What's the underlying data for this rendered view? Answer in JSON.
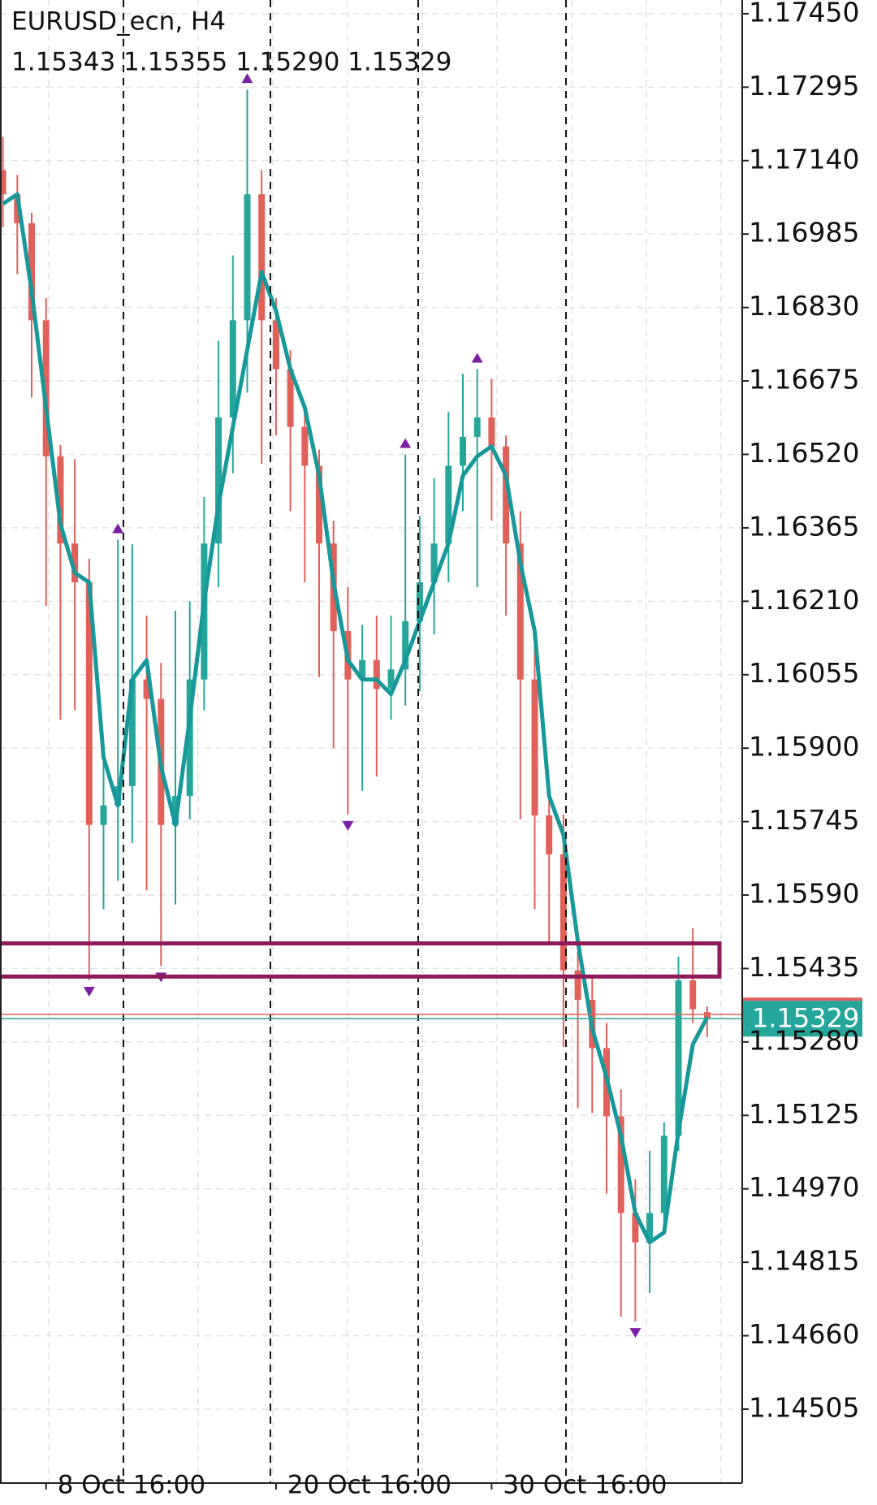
{
  "chart_data": {
    "type": "candlestick",
    "title": "EURUSD_ecn, H4",
    "subtitle": "1.15343 1.15355 1.15290 1.15329",
    "categories": [
      null,
      null,
      null,
      "8 Oct 16:00",
      null,
      null,
      null,
      null,
      null,
      null,
      null,
      null,
      null,
      null,
      null,
      null,
      null,
      null,
      null,
      "20 Oct 16:00",
      null,
      null,
      null,
      null,
      null,
      null,
      null,
      null,
      null,
      null,
      null,
      null,
      null,
      null,
      "30 Oct 16:00",
      null,
      null,
      null,
      null,
      null,
      null,
      null,
      null,
      null,
      null,
      null,
      null,
      null,
      null,
      null
    ],
    "ohlc": [
      [
        1.1712,
        1.1719,
        1.17,
        1.17069
      ],
      [
        1.17069,
        1.1711,
        1.169,
        1.17008
      ],
      [
        1.17008,
        1.1703,
        1.1664,
        1.16803
      ],
      [
        1.16803,
        1.1685,
        1.162,
        1.16516
      ],
      [
        1.16516,
        1.1654,
        1.1596,
        1.16332
      ],
      [
        1.16332,
        1.1651,
        1.1598,
        1.1625
      ],
      [
        1.1625,
        1.163,
        1.1541,
        1.15738
      ],
      [
        1.15738,
        1.1591,
        1.1556,
        1.15779
      ],
      [
        1.15779,
        1.1634,
        1.1562,
        1.1582
      ],
      [
        1.1582,
        1.1633,
        1.157,
        1.16045
      ],
      [
        1.16045,
        1.1618,
        1.156,
        1.16004
      ],
      [
        1.16004,
        1.1608,
        1.1544,
        1.15738
      ],
      [
        1.15738,
        1.1619,
        1.1557,
        1.15799
      ],
      [
        1.15799,
        1.1621,
        1.1575,
        1.16045
      ],
      [
        1.16045,
        1.1643,
        1.1598,
        1.16332
      ],
      [
        1.16332,
        1.1676,
        1.1624,
        1.16598
      ],
      [
        1.16598,
        1.1694,
        1.1648,
        1.16803
      ],
      [
        1.16803,
        1.1729,
        1.1665,
        1.17069
      ],
      [
        1.17069,
        1.1712,
        1.165,
        1.16803
      ],
      [
        1.16803,
        1.1685,
        1.1656,
        1.167
      ],
      [
        1.167,
        1.1674,
        1.164,
        1.16578
      ],
      [
        1.16578,
        1.1662,
        1.1625,
        1.16496
      ],
      [
        1.16496,
        1.1653,
        1.1605,
        1.16332
      ],
      [
        1.16332,
        1.1638,
        1.159,
        1.16147
      ],
      [
        1.16147,
        1.1624,
        1.1576,
        1.16045
      ],
      [
        1.16045,
        1.1616,
        1.1581,
        1.16086
      ],
      [
        1.16086,
        1.1618,
        1.1584,
        1.16025
      ],
      [
        1.16025,
        1.1618,
        1.1596,
        1.16066
      ],
      [
        1.16066,
        1.1652,
        1.1599,
        1.16168
      ],
      [
        1.16168,
        1.1639,
        1.1602,
        1.1625
      ],
      [
        1.1625,
        1.1647,
        1.1614,
        1.16332
      ],
      [
        1.16332,
        1.1661,
        1.1625,
        1.16496
      ],
      [
        1.16496,
        1.1669,
        1.164,
        1.16557
      ],
      [
        1.16557,
        1.167,
        1.1624,
        1.16598
      ],
      [
        1.16598,
        1.1668,
        1.1638,
        1.16537
      ],
      [
        1.16537,
        1.1656,
        1.1618,
        1.16332
      ],
      [
        1.16332,
        1.164,
        1.1575,
        1.16045
      ],
      [
        1.16045,
        1.1612,
        1.1556,
        1.15758
      ],
      [
        1.15758,
        1.1579,
        1.1549,
        1.15676
      ],
      [
        1.15676,
        1.1576,
        1.1527,
        1.15431
      ],
      [
        1.15431,
        1.1547,
        1.1514,
        1.15369
      ],
      [
        1.15369,
        1.1542,
        1.1513,
        1.15267
      ],
      [
        1.15267,
        1.1532,
        1.1496,
        1.15123
      ],
      [
        1.15123,
        1.1518,
        1.147,
        1.14919
      ],
      [
        1.14919,
        1.1499,
        1.1469,
        1.14857
      ],
      [
        1.14857,
        1.1505,
        1.1475,
        1.14919
      ],
      [
        1.14919,
        1.1511,
        1.1488,
        1.15082
      ],
      [
        1.15082,
        1.1546,
        1.1505,
        1.1541
      ],
      [
        1.1541,
        1.1552,
        1.1532,
        1.15349
      ],
      [
        1.15343,
        1.15355,
        1.1529,
        1.15329
      ]
    ],
    "up_color": "#26a69a",
    "down_color": "#e0605a",
    "moving_average": {
      "color": "#17989a",
      "values": [
        1.17049,
        1.17069,
        1.16864,
        1.16619,
        1.16373,
        1.1627,
        1.1625,
        1.15881,
        1.15779,
        1.16045,
        1.16086,
        1.15861,
        1.15738,
        1.15963,
        1.16209,
        1.16414,
        1.16578,
        1.16741,
        1.16905,
        1.16823,
        1.167,
        1.16619,
        1.16475,
        1.1625,
        1.16086,
        1.16045,
        1.16045,
        1.16014,
        1.16086,
        1.16168,
        1.1625,
        1.16332,
        1.16475,
        1.16516,
        1.16537,
        1.16475,
        1.16291,
        1.16147,
        1.15799,
        1.15717,
        1.15492,
        1.15308,
        1.15205,
        1.15082,
        1.14919,
        1.14857,
        1.14878,
        1.15091,
        1.15275,
        1.15332
      ]
    },
    "fractal_color": "#7b1fa2",
    "zone": {
      "top": 1.15488,
      "bottom": 1.15418,
      "color": "#8e1a5c"
    },
    "ask_line": {
      "value": 1.15338,
      "color": "#e0605a"
    },
    "price_label_color": "#26a69a",
    "ylim": [
      1.14349,
      1.17479
    ],
    "yticks": [
      {
        "value": 1.1745,
        "label": "1.17450"
      },
      1.17295,
      {
        "value": 1.1714,
        "label": "1.17140"
      },
      1.16985,
      {
        "value": 1.1683,
        "label": "1.16830"
      },
      1.16675,
      {
        "value": 1.1652,
        "label": "1.16520"
      },
      1.16365,
      {
        "value": 1.1621,
        "label": "1.16210"
      },
      1.16055,
      {
        "value": 1.159,
        "label": "1.15900"
      },
      1.15745,
      {
        "value": 1.1559,
        "label": "1.15590"
      },
      1.15435,
      {
        "value": 1.1528,
        "label": "1.15280"
      },
      1.15125,
      {
        "value": 1.1497,
        "label": "1.14970"
      },
      1.14815,
      {
        "value": 1.1466,
        "label": "1.14660"
      },
      1.14505
    ],
    "grid": true
  }
}
